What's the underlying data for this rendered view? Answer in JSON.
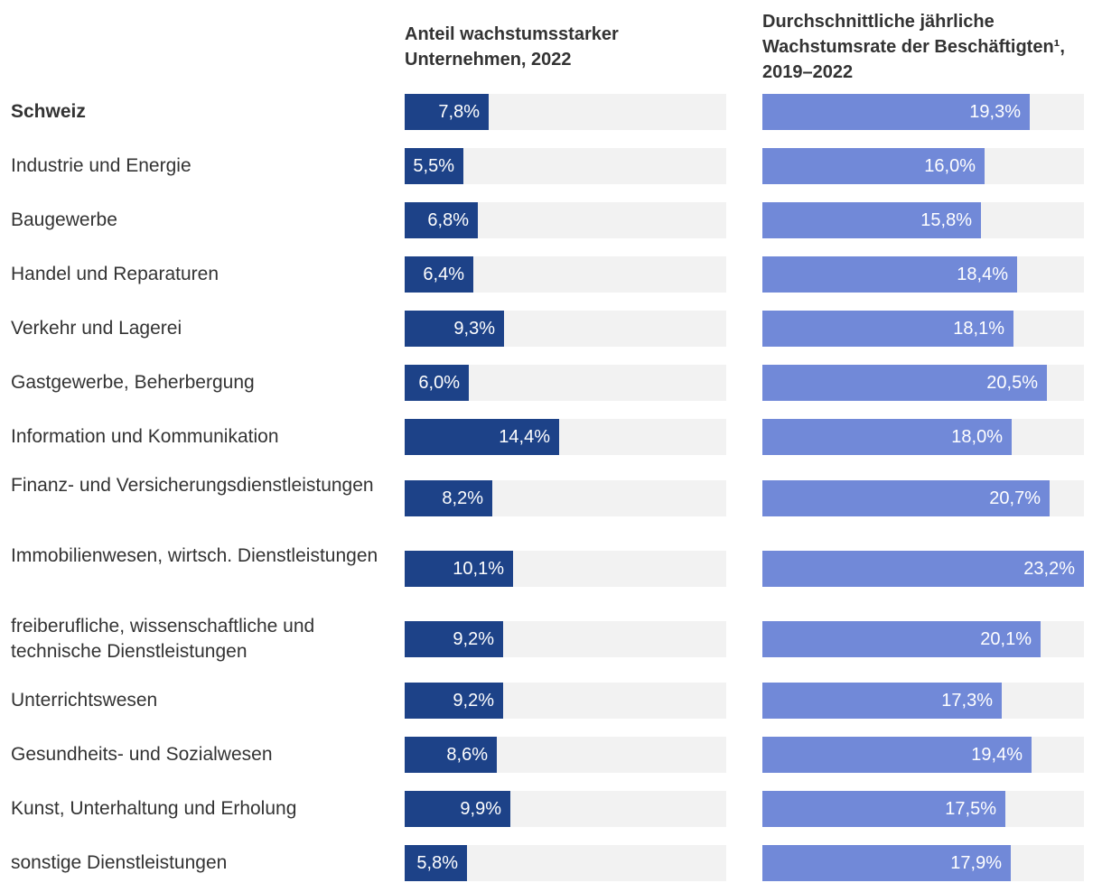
{
  "chart_data": {
    "type": "bar",
    "orientation": "horizontal",
    "categories": [
      "Schweiz",
      "Industrie und Energie",
      "Baugewerbe",
      "Handel und Reparaturen",
      "Verkehr und Lagerei",
      "Gastgewerbe, Beherbergung",
      "Information und Kommunikation",
      "Finanz- und Versicherungsdienstleistungen",
      "Immobilienwesen, wirtsch. Dienstleistungen",
      "freiberufliche, wissenschaftliche und technische Dienstleistungen",
      "Unterrichtswesen",
      "Gesundheits- und Sozialwesen",
      "Kunst, Unterhaltung und Erholung",
      "sonstige Dienstleistungen"
    ],
    "bold_categories": [
      "Schweiz"
    ],
    "series": [
      {
        "name": "Anteil wachstumsstarker Unternehmen, 2022",
        "color": "#1d4288",
        "xlim": [
          0,
          30
        ],
        "values": [
          7.8,
          5.5,
          6.8,
          6.4,
          9.3,
          6.0,
          14.4,
          8.2,
          10.1,
          9.2,
          9.2,
          8.6,
          9.9,
          5.8
        ],
        "labels": [
          "7,8%",
          "5,5%",
          "6,8%",
          "6,4%",
          "9,3%",
          "6,0%",
          "14,4%",
          "8,2%",
          "10,1%",
          "9,2%",
          "9,2%",
          "8,6%",
          "9,9%",
          "5,8%"
        ]
      },
      {
        "name": "Durchschnittliche jährliche Wachstumsrate der Beschäftigten¹, 2019–2022",
        "color": "#7189d8",
        "xlim": [
          0,
          23.2
        ],
        "values": [
          19.3,
          16.0,
          15.8,
          18.4,
          18.1,
          20.5,
          18.0,
          20.7,
          23.2,
          20.1,
          17.3,
          19.4,
          17.5,
          17.9
        ],
        "labels": [
          "19,3%",
          "16,0%",
          "15,8%",
          "18,4%",
          "18,1%",
          "20,5%",
          "18,0%",
          "20,7%",
          "23,2%",
          "20,1%",
          "17,3%",
          "19,4%",
          "17,5%",
          "17,9%"
        ]
      }
    ],
    "track_color": "#f2f2f2"
  }
}
